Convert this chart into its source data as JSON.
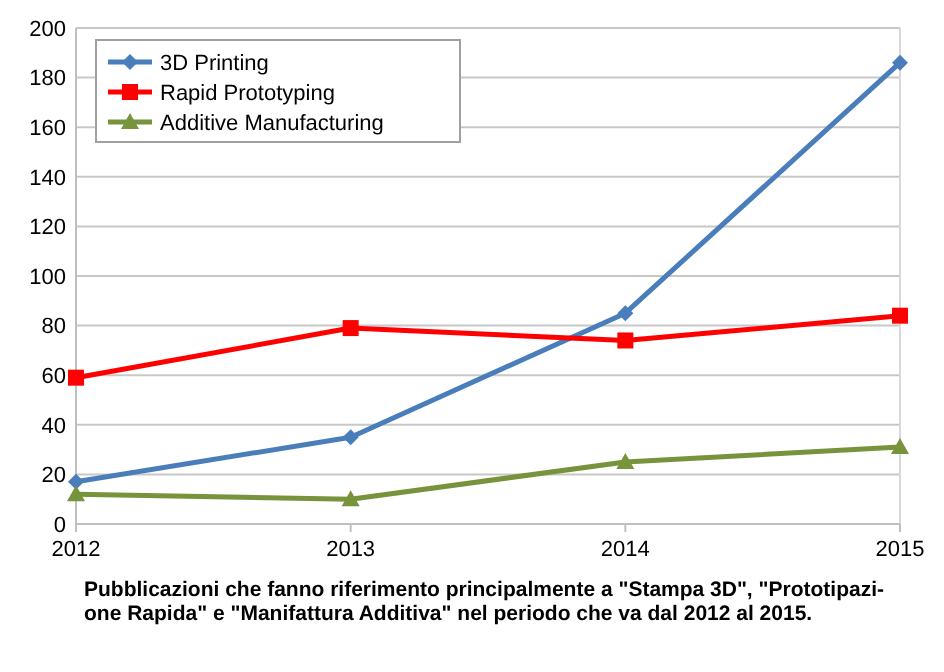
{
  "chart_data": {
    "type": "line",
    "categories": [
      "2012",
      "2013",
      "2014",
      "2015"
    ],
    "series": [
      {
        "name": "3D Printing",
        "color": "#4a7ebb",
        "marker": "diamond",
        "values": [
          17,
          35,
          85,
          186
        ]
      },
      {
        "name": "Rapid Prototyping",
        "color": "#ff0000",
        "marker": "square",
        "values": [
          59,
          79,
          74,
          84
        ]
      },
      {
        "name": "Additive Manufacturing",
        "color": "#77933c",
        "marker": "triangle",
        "values": [
          12,
          10,
          25,
          31
        ]
      }
    ],
    "ylim": [
      0,
      200
    ],
    "yticks": [
      0,
      20,
      40,
      60,
      80,
      100,
      120,
      140,
      160,
      180,
      200
    ],
    "grid": "y",
    "legend": "top left",
    "annotations": [
      "Pubblicazioni che fanno riferimento principalmente a \"Stampa 3D\", \"Prototipazi-",
      "one Rapida\" e \"Manifattura Additiva\" nel periodo che va dal 2012 al 2015."
    ]
  }
}
